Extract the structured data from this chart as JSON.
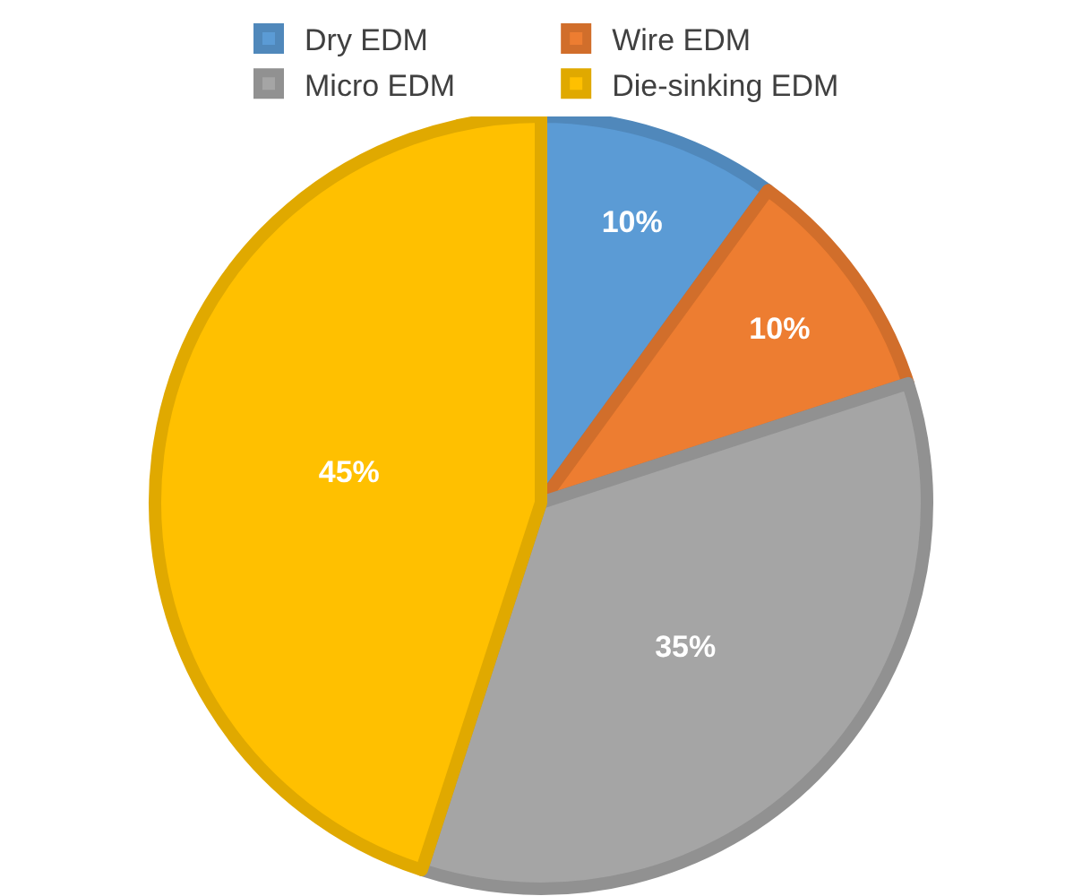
{
  "chart_data": {
    "type": "pie",
    "categories": [
      "Dry EDM",
      "Wire EDM",
      "Micro EDM",
      "Die-sinking EDM"
    ],
    "values": [
      10,
      10,
      35,
      45
    ],
    "value_labels": [
      "10%",
      "10%",
      "35%",
      "45%"
    ],
    "colors": [
      "#5b9bd5",
      "#ed7d31",
      "#a5a5a5",
      "#ffc000"
    ],
    "legend": "top"
  }
}
